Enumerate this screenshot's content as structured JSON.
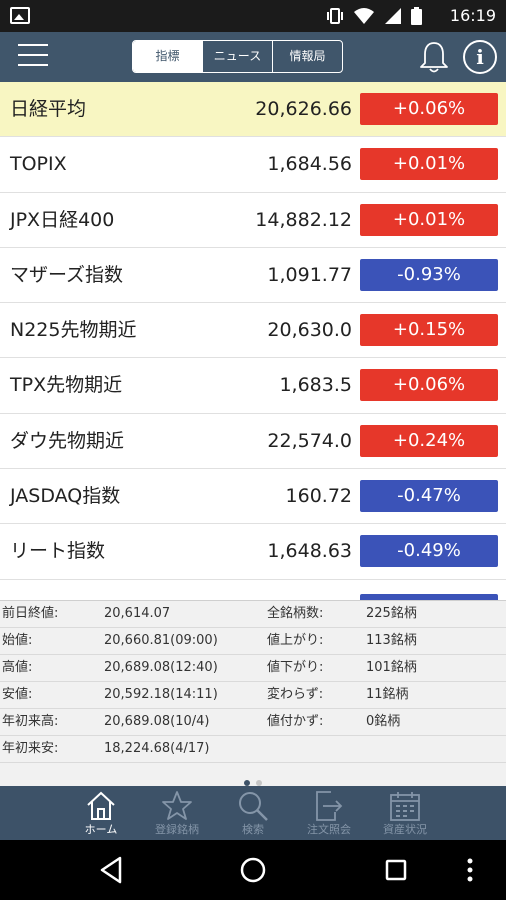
{
  "status_bar": {
    "time": "16:19",
    "icons": [
      "image-icon",
      "vibrate-icon",
      "wifi-icon",
      "signal-icon",
      "battery-icon"
    ]
  },
  "header": {
    "menu_icon": "hamburger-icon",
    "tabs": [
      {
        "label": "指標",
        "active": true
      },
      {
        "label": "ニュース",
        "active": false
      },
      {
        "label": "情報局",
        "active": false
      }
    ],
    "bell_icon": "bell-icon",
    "info_icon": "info-icon",
    "info_glyph": "i"
  },
  "indices": [
    {
      "name": "日経平均",
      "value": "20,626.66",
      "change": "+0.06%",
      "direction": "up",
      "highlight": true
    },
    {
      "name": "TOPIX",
      "value": "1,684.56",
      "change": "+0.01%",
      "direction": "up"
    },
    {
      "name": "JPX日経400",
      "value": "14,882.12",
      "change": "+0.01%",
      "direction": "up"
    },
    {
      "name": "マザーズ指数",
      "value": "1,091.77",
      "change": "-0.93%",
      "direction": "down"
    },
    {
      "name": "N225先物期近",
      "value": "20,630.0",
      "change": "+0.15%",
      "direction": "up"
    },
    {
      "name": "TPX先物期近",
      "value": "1,683.5",
      "change": "+0.06%",
      "direction": "up"
    },
    {
      "name": "ダウ先物期近",
      "value": "22,574.0",
      "change": "+0.24%",
      "direction": "up"
    },
    {
      "name": "JASDAQ指数",
      "value": "160.72",
      "change": "-0.47%",
      "direction": "down"
    },
    {
      "name": "リート指数",
      "value": "1,648.63",
      "change": "-0.49%",
      "direction": "down"
    }
  ],
  "details": {
    "left": [
      {
        "label": "前日終値:",
        "value": "20,614.07"
      },
      {
        "label": "始値:",
        "value": "20,660.81(09:00)"
      },
      {
        "label": "高値:",
        "value": "20,689.08(12:40)"
      },
      {
        "label": "安値:",
        "value": "20,592.18(14:11)"
      },
      {
        "label": "年初来高:",
        "value": "20,689.08(10/4)"
      },
      {
        "label": "年初来安:",
        "value": "18,224.68(4/17)"
      }
    ],
    "right": [
      {
        "label": "全銘柄数:",
        "value": "225銘柄"
      },
      {
        "label": "値上がり:",
        "value": "113銘柄"
      },
      {
        "label": "値下がり:",
        "value": "101銘柄"
      },
      {
        "label": "変わらず:",
        "value": "11銘柄"
      },
      {
        "label": "値付かず:",
        "value": "0銘柄"
      }
    ],
    "page_index": 1,
    "page_count": 2
  },
  "tabbar": {
    "items": [
      {
        "label": "ホーム",
        "icon": "home-icon",
        "active": true
      },
      {
        "label": "登録銘柄",
        "icon": "star-icon",
        "active": false
      },
      {
        "label": "検索",
        "icon": "search-icon",
        "active": false
      },
      {
        "label": "注文照会",
        "icon": "order-inquiry-icon",
        "active": false
      },
      {
        "label": "資産状況",
        "icon": "calendar-icon",
        "active": false
      }
    ]
  },
  "colors": {
    "header": "#40566b",
    "highlight_row": "#f8f6c2",
    "up": "#e6372a",
    "down": "#3b53b8",
    "tabbar": "#3d5268"
  }
}
